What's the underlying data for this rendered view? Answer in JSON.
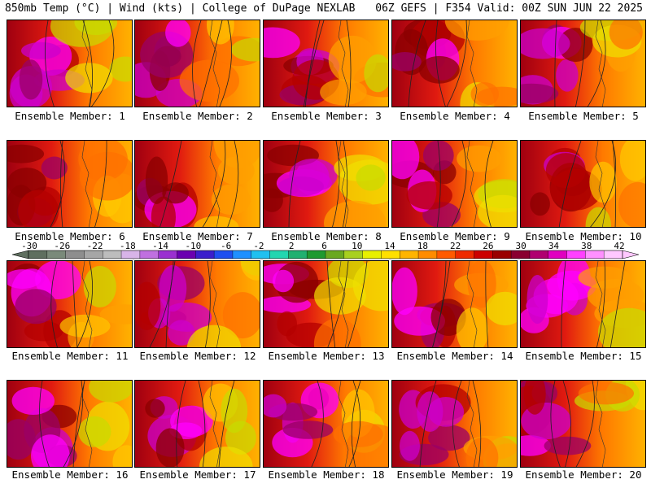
{
  "header": {
    "left": "850mb Temp (°C) | Wind (kts) | College of DuPage NEXLAB",
    "right": "06Z GEFS | F354 Valid: 00Z SUN JUN 22 2025"
  },
  "caption_prefix": "Ensemble Member:",
  "members": [
    "1",
    "2",
    "3",
    "4",
    "5",
    "6",
    "7",
    "8",
    "9",
    "10",
    "11",
    "12",
    "13",
    "14",
    "15",
    "16",
    "17",
    "18",
    "19",
    "20"
  ],
  "colorbar": {
    "ticks": [
      "-30",
      "-26",
      "-22",
      "-18",
      "-14",
      "-10",
      "-6",
      "-2",
      "2",
      "6",
      "10",
      "14",
      "18",
      "22",
      "26",
      "30",
      "34",
      "38",
      "42"
    ],
    "colors": [
      "#5f6f5f",
      "#7a8a7a",
      "#8e8e8e",
      "#a6a6a6",
      "#bdbdbd",
      "#d8b4e8",
      "#c070e0",
      "#9a30d0",
      "#6a00b0",
      "#3b1fcc",
      "#1f4ff0",
      "#1f90ff",
      "#20c0f0",
      "#22d6b0",
      "#20b070",
      "#1f9a30",
      "#6aa820",
      "#a8d020",
      "#e8f000",
      "#ffe000",
      "#ffb400",
      "#ff8c00",
      "#ff5a00",
      "#ee2a00",
      "#cc0000",
      "#9a0000",
      "#8a0030",
      "#b00070",
      "#e000c0",
      "#ff40ff",
      "#ff90ff",
      "#ffc8ff"
    ]
  }
}
